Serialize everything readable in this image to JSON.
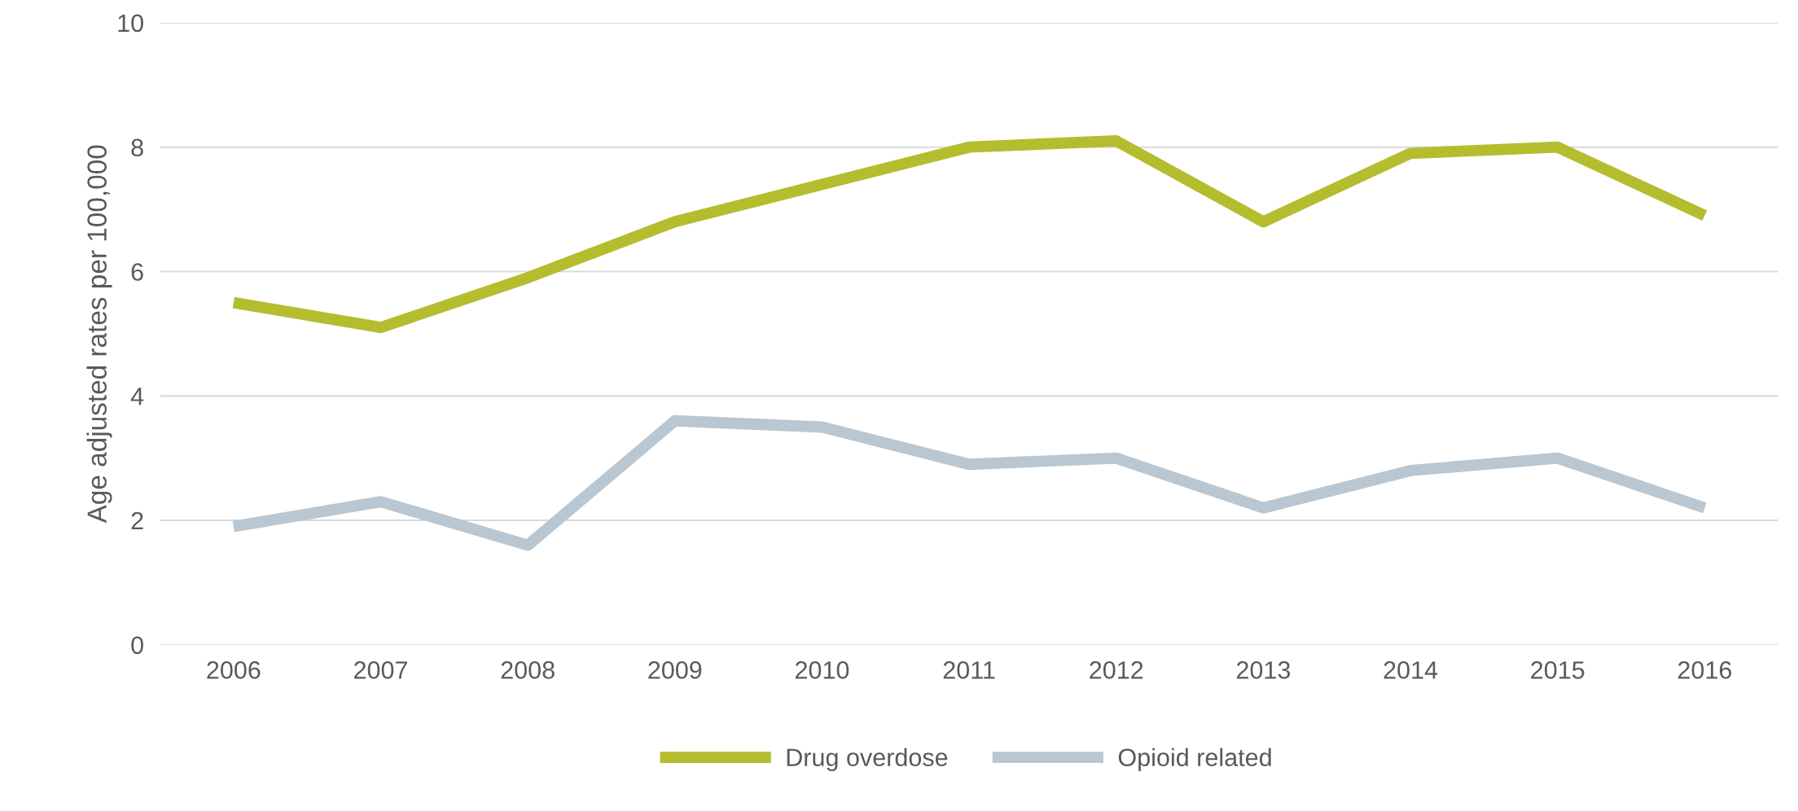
{
  "chart_data": {
    "type": "line",
    "ylabel": "Age adjusted rates per 100,000",
    "categories": [
      "2006",
      "2007",
      "2008",
      "2009",
      "2010",
      "2011",
      "2012",
      "2013",
      "2014",
      "2015",
      "2016"
    ],
    "series": [
      {
        "name": "Drug overdose",
        "color": "#b5bd2e",
        "values": [
          5.5,
          5.1,
          5.9,
          6.8,
          7.4,
          8.0,
          8.1,
          6.8,
          7.9,
          8.0,
          6.9
        ]
      },
      {
        "name": "Opioid related",
        "color": "#b8c7d1",
        "values": [
          1.9,
          2.3,
          1.6,
          3.6,
          3.5,
          2.9,
          3.0,
          2.2,
          2.8,
          3.0,
          2.2
        ]
      }
    ],
    "ylim": [
      0,
      10
    ],
    "yticks": [
      0,
      2,
      4,
      6,
      8,
      10
    ],
    "grid": "y",
    "legend": "bottom",
    "marker": "none",
    "line_style": "solid"
  }
}
